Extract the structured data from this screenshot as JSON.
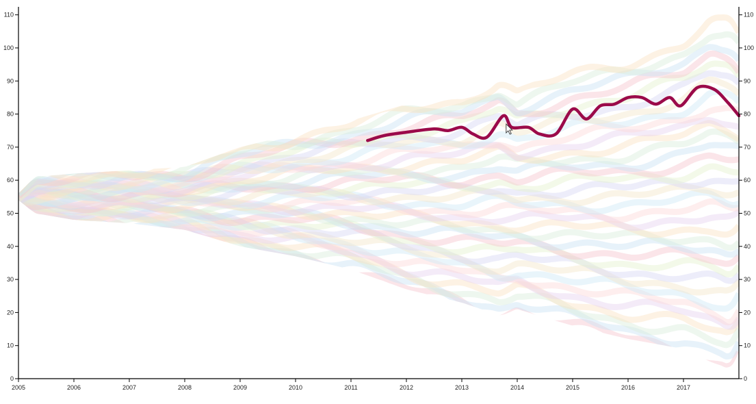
{
  "chart_data": {
    "type": "streamgraph",
    "title": "",
    "xlabel": "",
    "ylabel": "",
    "xlim": [
      2005,
      2018
    ],
    "ylim": [
      0,
      112
    ],
    "x_ticks": [
      "2005",
      "2006",
      "2007",
      "2008",
      "2009",
      "2010",
      "2011",
      "2012",
      "2013",
      "2014",
      "2015",
      "2016",
      "2017"
    ],
    "y_ticks": [
      "0",
      "10",
      "20",
      "30",
      "40",
      "50",
      "60",
      "70",
      "80",
      "90",
      "100",
      "110"
    ],
    "y_axis_sides": "left-and-right",
    "background_layers": "many faint multicolored stacked streams (pastel, low opacity)",
    "envelope": {
      "x": [
        2005.0,
        2005.3,
        2006.0,
        2007.0,
        2008.0,
        2009.0,
        2010.0,
        2011.0,
        2012.0,
        2013.0,
        2013.7,
        2014.0,
        2015.0,
        2016.0,
        2017.0,
        2017.5,
        2017.85,
        2018.0
      ],
      "upper": [
        56,
        61,
        62,
        63,
        64,
        70,
        74,
        78,
        83,
        86,
        92,
        88,
        94,
        98,
        104,
        111,
        110,
        106
      ],
      "lower": [
        54,
        50,
        48,
        47,
        45,
        40,
        37,
        33,
        27,
        23,
        19,
        21,
        16,
        12,
        9,
        5,
        3,
        8
      ]
    },
    "highlighted_series": {
      "color": "#9b0a4a",
      "points": [
        [
          2011.3,
          72
        ],
        [
          2011.6,
          73.5
        ],
        [
          2012.0,
          74.5
        ],
        [
          2012.5,
          75.5
        ],
        [
          2012.75,
          75
        ],
        [
          2013.0,
          76
        ],
        [
          2013.2,
          74
        ],
        [
          2013.45,
          73
        ],
        [
          2013.75,
          79.5
        ],
        [
          2013.9,
          76
        ],
        [
          2014.2,
          76
        ],
        [
          2014.4,
          74
        ],
        [
          2014.7,
          74
        ],
        [
          2015.0,
          81.5
        ],
        [
          2015.25,
          78.5
        ],
        [
          2015.5,
          82.5
        ],
        [
          2015.75,
          83
        ],
        [
          2016.0,
          85
        ],
        [
          2016.25,
          85
        ],
        [
          2016.5,
          83
        ],
        [
          2016.75,
          85
        ],
        [
          2016.95,
          82.5
        ],
        [
          2017.25,
          88
        ],
        [
          2017.55,
          87.5
        ],
        [
          2017.8,
          83.5
        ],
        [
          2018.0,
          79.5
        ]
      ]
    },
    "cursor": {
      "x": 2013.8,
      "y": 77
    }
  }
}
